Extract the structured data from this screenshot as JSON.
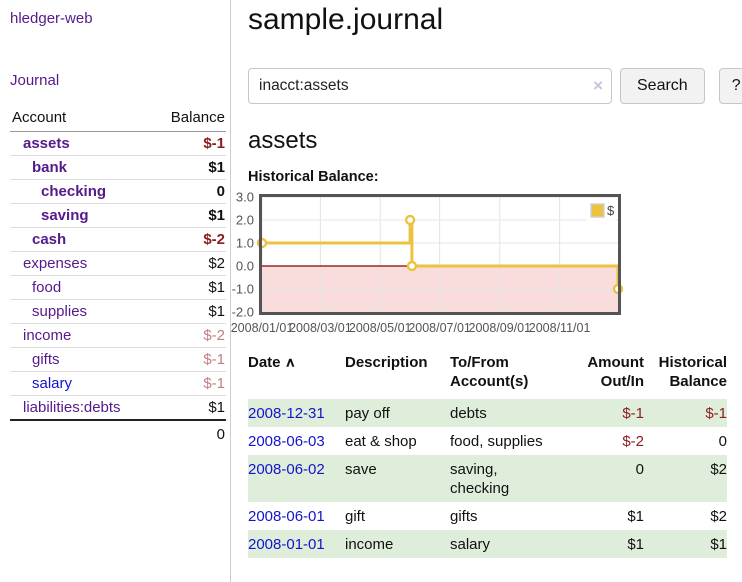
{
  "app": {
    "title": "hledger-web"
  },
  "sidebar": {
    "journal_link": "Journal",
    "accounts_table": {
      "account_header": "Account",
      "balance_header": "Balance",
      "rows": [
        {
          "name": "assets",
          "depth": 1,
          "bold": true,
          "balance": "$-1",
          "balance_class": "amt-neg-strong",
          "link_style": "visited"
        },
        {
          "name": "bank",
          "depth": 2,
          "bold": true,
          "balance": "$1",
          "balance_class": "amt-pos",
          "link_style": "visited"
        },
        {
          "name": "checking",
          "depth": 3,
          "bold": true,
          "balance": "0",
          "balance_class": "amt-pos",
          "link_style": "visited"
        },
        {
          "name": "saving",
          "depth": 3,
          "bold": true,
          "balance": "$1",
          "balance_class": "amt-pos",
          "link_style": "visited"
        },
        {
          "name": "cash",
          "depth": 2,
          "bold": true,
          "balance": "$-2",
          "balance_class": "amt-neg-strong",
          "link_style": "visited"
        },
        {
          "name": "expenses",
          "depth": 1,
          "bold": false,
          "balance": "$2",
          "balance_class": "amt-pos",
          "link_style": "visited"
        },
        {
          "name": "food",
          "depth": 2,
          "bold": false,
          "balance": "$1",
          "balance_class": "amt-pos",
          "link_style": "visited"
        },
        {
          "name": "supplies",
          "depth": 2,
          "bold": false,
          "balance": "$1",
          "balance_class": "amt-pos",
          "link_style": "visited"
        },
        {
          "name": "income",
          "depth": 1,
          "bold": false,
          "balance": "$-2",
          "balance_class": "amt-neg-light",
          "link_style": "visited"
        },
        {
          "name": "gifts",
          "depth": 2,
          "bold": false,
          "balance": "$-1",
          "balance_class": "amt-neg-light",
          "link_style": "visited"
        },
        {
          "name": "salary",
          "depth": 2,
          "bold": false,
          "balance": "$-1",
          "balance_class": "amt-neg-light",
          "link_style": "unvisited"
        },
        {
          "name": "liabilities:debts",
          "depth": 1,
          "bold": false,
          "balance": "$1",
          "balance_class": "amt-pos",
          "link_style": "visited"
        }
      ],
      "total": "0"
    }
  },
  "header": {
    "title": "sample.journal"
  },
  "search": {
    "value": "inacct:assets",
    "clear_icon": "×",
    "button_label": "Search",
    "help_label": "?"
  },
  "account_view": {
    "heading": "assets",
    "chart_label": "Historical Balance:"
  },
  "chart_data": {
    "type": "line",
    "title": "Historical Balance",
    "ylim": [
      -2.0,
      3.0
    ],
    "yticks": [
      3.0,
      2.0,
      1.0,
      0.0,
      -1.0,
      -2.0
    ],
    "xticks": [
      {
        "label": "2008/01/01",
        "pos": 0.0
      },
      {
        "label": "2008/03/01",
        "pos": 0.164
      },
      {
        "label": "2008/05/01",
        "pos": 0.332
      },
      {
        "label": "2008/07/01",
        "pos": 0.499
      },
      {
        "label": "2008/09/01",
        "pos": 0.668
      },
      {
        "label": "2008/11/01",
        "pos": 0.836
      }
    ],
    "series": [
      {
        "name": "$",
        "step": true,
        "points": [
          {
            "date": "2008-01-01",
            "x": 0.0,
            "y": 1
          },
          {
            "date": "2008-06-01",
            "x": 0.416,
            "y": 2
          },
          {
            "date": "2008-06-03",
            "x": 0.421,
            "y": 0
          },
          {
            "date": "2008-12-31",
            "x": 1.0,
            "y": -1
          }
        ]
      }
    ],
    "legend": {
      "label": "$",
      "position": "top-right"
    },
    "colors": {
      "line": "#edc240",
      "point_fill": "#ffffff",
      "negative_fill": "#f9dcdc",
      "zero_line": "#8b0000",
      "grid": "#e4e4e4",
      "border": "#545454",
      "tick_text": "#545454"
    }
  },
  "register_table": {
    "headers": {
      "date": "Date",
      "sort_icon": "∧",
      "description": "Description",
      "accounts": "To/From Account(s)",
      "amount": "Amount Out/In",
      "balance": "Historical Balance"
    },
    "rows": [
      {
        "date": "2008-12-31",
        "description": "pay off",
        "accounts": "debts",
        "amount": "$-1",
        "amount_negative": true,
        "balance": "$-1",
        "balance_negative": true,
        "shaded": true
      },
      {
        "date": "2008-06-03",
        "description": "eat & shop",
        "accounts": "food, supplies",
        "amount": "$-2",
        "amount_negative": true,
        "balance": "0",
        "balance_negative": false,
        "shaded": false
      },
      {
        "date": "2008-06-02",
        "description": "save",
        "accounts": "saving, checking",
        "amount": "0",
        "amount_negative": false,
        "balance": "$2",
        "balance_negative": false,
        "shaded": true
      },
      {
        "date": "2008-06-01",
        "description": "gift",
        "accounts": "gifts",
        "amount": "$1",
        "amount_negative": false,
        "balance": "$2",
        "balance_negative": false,
        "shaded": false
      },
      {
        "date": "2008-01-01",
        "description": "income",
        "accounts": "salary",
        "amount": "$1",
        "amount_negative": false,
        "balance": "$1",
        "balance_negative": false,
        "shaded": true
      }
    ]
  },
  "colors": {
    "link_purple": "#551a8b",
    "link_blue": "#1414cc",
    "negative_strong": "#8b1c1f",
    "negative_light": "#c27d82",
    "row_highlight_green": "#dfeeda"
  }
}
